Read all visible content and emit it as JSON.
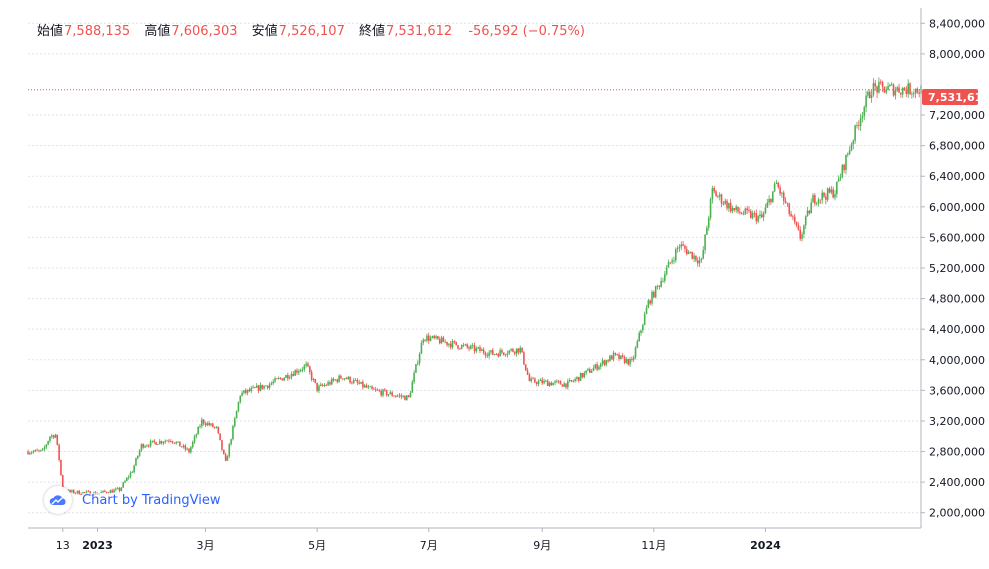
{
  "header": {
    "open_label": "始値",
    "open_value": "7,588,135",
    "high_label": "高値",
    "high_value": "7,606,303",
    "low_label": "安値",
    "low_value": "7,526,107",
    "close_label": "終値",
    "close_value": "7,531,612",
    "change": "-56,592 (−0.75%)"
  },
  "branding": {
    "text": "Chart by TradingView",
    "logo_icon": "tradingview-cloud-icon"
  },
  "colors": {
    "up": "#26a69a",
    "up_alt": "#4caf50",
    "down": "#ef5350",
    "grid": "#e0e3eb",
    "price_line": "#ef5350"
  },
  "chart_data": {
    "type": "candlestick",
    "grid": true,
    "ylim": [
      1800000,
      8600000
    ],
    "y_ticks": [
      {
        "value": 2000000,
        "label": "2,000,000"
      },
      {
        "value": 2400000,
        "label": "2,400,000"
      },
      {
        "value": 2800000,
        "label": "2,800,000"
      },
      {
        "value": 3200000,
        "label": "3,200,000"
      },
      {
        "value": 3600000,
        "label": "3,600,000"
      },
      {
        "value": 4000000,
        "label": "4,000,000"
      },
      {
        "value": 4400000,
        "label": "4,400,000"
      },
      {
        "value": 4800000,
        "label": "4,800,000"
      },
      {
        "value": 5200000,
        "label": "5,200,000"
      },
      {
        "value": 5600000,
        "label": "5,600,000"
      },
      {
        "value": 6000000,
        "label": "6,000,000"
      },
      {
        "value": 6400000,
        "label": "6,400,000"
      },
      {
        "value": 6800000,
        "label": "6,800,000"
      },
      {
        "value": 7200000,
        "label": "7,200,000"
      },
      {
        "value": 8000000,
        "label": "8,000,000"
      },
      {
        "value": 8400000,
        "label": "8,400,000"
      }
    ],
    "x_ticks": [
      {
        "date": "2022-12-13",
        "label": "13",
        "bold": false
      },
      {
        "date": "2023-01-01",
        "label": "2023",
        "bold": true
      },
      {
        "date": "2023-03-01",
        "label": "3月",
        "bold": false
      },
      {
        "date": "2023-05-01",
        "label": "5月",
        "bold": false
      },
      {
        "date": "2023-07-01",
        "label": "7月",
        "bold": false
      },
      {
        "date": "2023-09-01",
        "label": "9月",
        "bold": false
      },
      {
        "date": "2023-11-01",
        "label": "11月",
        "bold": false
      },
      {
        "date": "2024-01-01",
        "label": "2024",
        "bold": true
      }
    ],
    "xlim": [
      "2022-11-24",
      "2024-03-26"
    ],
    "last_price": {
      "value": 7531612,
      "label": "7,531,612"
    },
    "path": [
      [
        "2022-11-24",
        2800000
      ],
      [
        "2022-12-02",
        2800000
      ],
      [
        "2022-12-06",
        3000000
      ],
      [
        "2022-12-09",
        3020000
      ],
      [
        "2022-12-11",
        2700000
      ],
      [
        "2022-12-13",
        2280000
      ],
      [
        "2022-12-31",
        2250000
      ],
      [
        "2023-01-13",
        2300000
      ],
      [
        "2023-01-20",
        2550000
      ],
      [
        "2023-01-25",
        2880000
      ],
      [
        "2023-02-10",
        2960000
      ],
      [
        "2023-02-20",
        2800000
      ],
      [
        "2023-02-27",
        3200000
      ],
      [
        "2023-03-07",
        3100000
      ],
      [
        "2023-03-12",
        2650000
      ],
      [
        "2023-03-20",
        3550000
      ],
      [
        "2023-04-05",
        3680000
      ],
      [
        "2023-04-25",
        3920000
      ],
      [
        "2023-05-01",
        3620000
      ],
      [
        "2023-05-15",
        3780000
      ],
      [
        "2023-05-31",
        3600000
      ],
      [
        "2023-06-20",
        3500000
      ],
      [
        "2023-06-28",
        4300000
      ],
      [
        "2023-07-15",
        4200000
      ],
      [
        "2023-08-05",
        4080000
      ],
      [
        "2023-08-20",
        4140000
      ],
      [
        "2023-08-25",
        3720000
      ],
      [
        "2023-09-15",
        3680000
      ],
      [
        "2023-10-10",
        4050000
      ],
      [
        "2023-10-20",
        3960000
      ],
      [
        "2023-10-29",
        4750000
      ],
      [
        "2023-11-03",
        4950000
      ],
      [
        "2023-11-15",
        5500000
      ],
      [
        "2023-11-27",
        5280000
      ],
      [
        "2023-12-03",
        6200000
      ],
      [
        "2023-12-15",
        5950000
      ],
      [
        "2023-12-30",
        5850000
      ],
      [
        "2024-01-07",
        6300000
      ],
      [
        "2024-01-20",
        5600000
      ],
      [
        "2024-01-27",
        6100000
      ],
      [
        "2024-02-08",
        6200000
      ],
      [
        "2024-02-22",
        7200000
      ],
      [
        "2024-02-28",
        7550000
      ],
      [
        "2024-03-26",
        7531612
      ]
    ]
  }
}
